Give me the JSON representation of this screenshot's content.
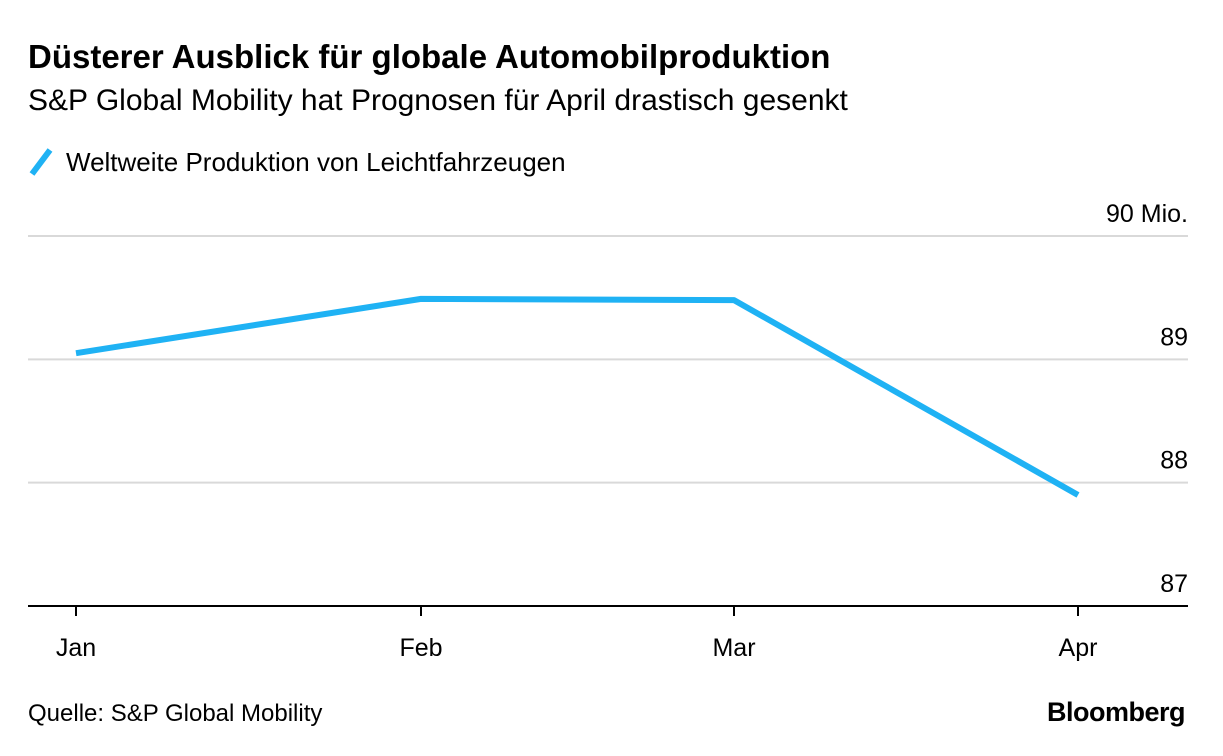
{
  "title": "Düsterer Ausblick für globale Automobilproduktion",
  "subtitle": "S&P Global Mobility hat Prognosen für April drastisch gesenkt",
  "source": "Quelle: S&P Global Mobility",
  "brand": "Bloomberg",
  "colors": {
    "series": "#1fb2f4",
    "grid": "#d9d9d9",
    "axis": "#000000",
    "text": "#000000"
  },
  "chart_data": {
    "type": "line",
    "title": "Düsterer Ausblick für globale Automobilproduktion",
    "subtitle": "S&P Global Mobility hat Prognosen für April drastisch gesenkt",
    "xlabel": "",
    "ylabel": "",
    "categories": [
      "Jan",
      "Feb",
      "Mar",
      "Apr"
    ],
    "series": [
      {
        "name": "Weltweite Produktion von Leichtfahrzeugen",
        "values": [
          89.05,
          89.49,
          89.48,
          87.9
        ]
      }
    ],
    "ylim": [
      87,
      90
    ],
    "yticks": [
      {
        "value": 87,
        "label": "87"
      },
      {
        "value": 88,
        "label": "88"
      },
      {
        "value": 89,
        "label": "89"
      },
      {
        "value": 90,
        "label": "90 Mio."
      }
    ],
    "grid": true,
    "y_axis_position": "right",
    "legend_position": "top-left"
  }
}
